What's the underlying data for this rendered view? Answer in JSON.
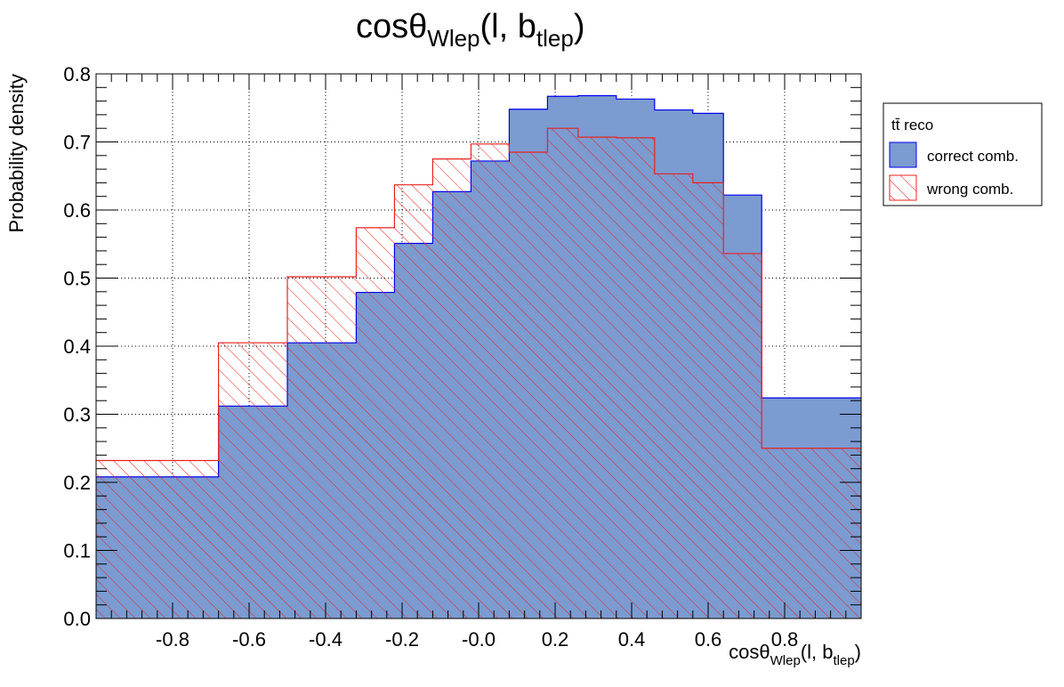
{
  "chart_data": {
    "type": "histogram",
    "title": "cosθ",
    "title_sub": "Wlep",
    "title_tail": "(l, b",
    "title_sub2": "tlep",
    "title_close": ")",
    "xlabel": "cosθ",
    "xlabel_sub": "Wlep",
    "xlabel_tail": "(l, b",
    "xlabel_sub2": "tlep",
    "xlabel_close": ")",
    "ylabel": "Probability density",
    "xlim": [
      -1.0,
      1.0
    ],
    "ylim": [
      0.0,
      0.8
    ],
    "x_ticks": [
      {
        "v": -0.8,
        "label": "-0.8"
      },
      {
        "v": -0.6,
        "label": "-0.6"
      },
      {
        "v": -0.4,
        "label": "-0.4"
      },
      {
        "v": -0.2,
        "label": "-0.2"
      },
      {
        "v": 0.0,
        "label": "-0.0"
      },
      {
        "v": 0.2,
        "label": "0.2"
      },
      {
        "v": 0.4,
        "label": "0.4"
      },
      {
        "v": 0.6,
        "label": "0.6"
      },
      {
        "v": 0.8,
        "label": "0.8"
      }
    ],
    "y_ticks": [
      {
        "v": 0.0,
        "label": "0.0"
      },
      {
        "v": 0.1,
        "label": "0.1"
      },
      {
        "v": 0.2,
        "label": "0.2"
      },
      {
        "v": 0.3,
        "label": "0.3"
      },
      {
        "v": 0.4,
        "label": "0.4"
      },
      {
        "v": 0.5,
        "label": "0.5"
      },
      {
        "v": 0.6,
        "label": "0.6"
      },
      {
        "v": 0.7,
        "label": "0.7"
      },
      {
        "v": 0.8,
        "label": "0.8"
      }
    ],
    "grid": true,
    "legend": {
      "title": "tt̄ reco",
      "placement": "right"
    },
    "bin_edges": [
      -1.0,
      -0.68,
      -0.5,
      -0.32,
      -0.22,
      -0.12,
      -0.02,
      0.08,
      0.18,
      0.26,
      0.36,
      0.46,
      0.56,
      0.64,
      0.74,
      1.0
    ],
    "series": [
      {
        "name": "correct comb.",
        "fill": "#7b9bd1",
        "line": "#0000ee",
        "values": [
          0.208,
          0.312,
          0.405,
          0.479,
          0.551,
          0.627,
          0.672,
          0.748,
          0.767,
          0.768,
          0.763,
          0.747,
          0.742,
          0.622,
          0.324
        ]
      },
      {
        "name": "wrong comb.",
        "fill": "hatch",
        "line": "#e8221f",
        "values": [
          0.232,
          0.405,
          0.502,
          0.574,
          0.637,
          0.675,
          0.697,
          0.685,
          0.72,
          0.707,
          0.706,
          0.653,
          0.64,
          0.536,
          0.25
        ]
      }
    ]
  }
}
